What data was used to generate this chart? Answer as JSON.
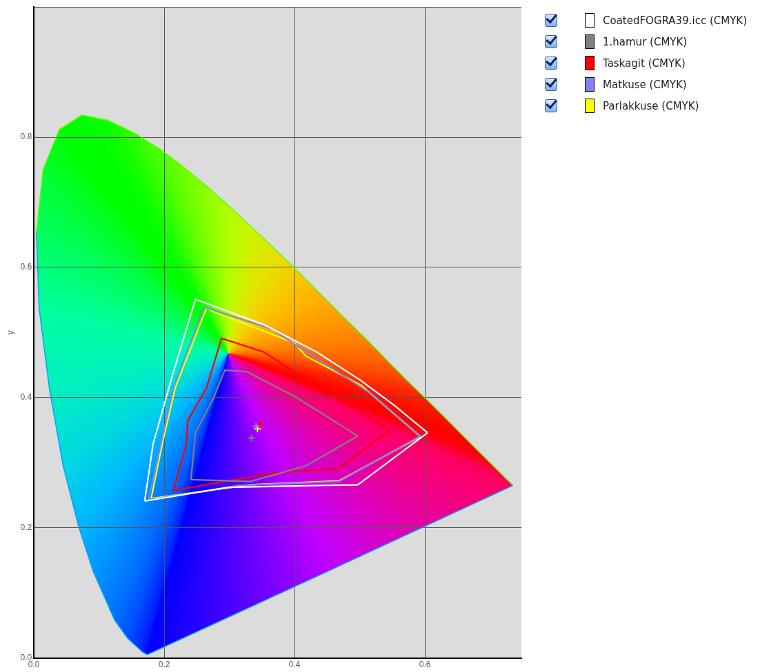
{
  "chart_data": {
    "type": "line",
    "ylabel": "y",
    "xlim": [
      0,
      0.748
    ],
    "xticks": [
      {
        "value": 0,
        "label": "0.0"
      },
      0.2,
      0.4,
      0.6
    ],
    "ylim": [
      0,
      1
    ],
    "yticks": [
      {
        "value": 0,
        "label": "0.0"
      },
      0.2,
      0.4,
      0.6,
      0.8,
      {
        "value": 1,
        "label": null
      }
    ],
    "grid": true,
    "legend": "top right",
    "marker": "none",
    "series": [
      {
        "color": "#00a0ff",
        "x": [
          0.004,
          0.008,
          0.024,
          0.045,
          0.069,
          0.091,
          0.124,
          0.144,
          0.167,
          0.174,
          0.455,
          0.735
        ],
        "values": [
          0.655,
          0.538,
          0.413,
          0.295,
          0.201,
          0.133,
          0.058,
          0.03,
          0.009,
          0.005,
          0.135,
          0.265
        ],
        "colors": [
          "#00ff60",
          "#00ffa0",
          "#00f0c0",
          "#00d8e0",
          "#00b8ff",
          "#0098ff",
          "#0070ff",
          "#0050ff",
          "#0020ff",
          "#0000ff",
          "#c000ff",
          "#ff0060"
        ]
      },
      {
        "color": "#60ff00",
        "x": [
          0.004,
          0.014,
          0.039,
          0.074,
          0.114,
          0.155,
          0.193,
          0.23,
          0.266,
          0.302,
          0.337,
          0.373,
          0.409,
          0.444,
          0.479,
          0.513,
          0.545,
          0.575,
          0.603,
          0.627,
          0.666,
          0.692,
          0.735
        ],
        "values": [
          0.655,
          0.75,
          0.812,
          0.834,
          0.826,
          0.806,
          0.782,
          0.754,
          0.724,
          0.692,
          0.659,
          0.625,
          0.59,
          0.555,
          0.52,
          0.487,
          0.454,
          0.424,
          0.397,
          0.373,
          0.334,
          0.308,
          0.265
        ],
        "colors": [
          "#00ff60",
          "#00ff30",
          "#00ff00",
          "#00ff00",
          "#10ff00",
          "#30ff00",
          "#50ff00",
          "#70ff00",
          "#90ff00",
          "#b0ff00",
          "#d0f000",
          "#e8e000",
          "#f8c800",
          "#ffb000",
          "#ff9800",
          "#ff8000",
          "#ff6000",
          "#ff4000",
          "#ff2000",
          "#ff1000",
          "#ff0000",
          "#ff0010",
          "#ff0060"
        ]
      },
      {
        "name": "CoatedFOGRA39.icc (CMYK)",
        "color": "#ffffff",
        "x": [
          0.17,
          0.183,
          0.214,
          0.248,
          0.353,
          0.434,
          0.502,
          0.553,
          0.604
        ],
        "values": [
          0.241,
          0.329,
          0.439,
          0.551,
          0.512,
          0.47,
          0.426,
          0.388,
          0.346
        ]
      },
      {
        "color": "#ffffff",
        "x": [
          0.17,
          0.298,
          0.434,
          0.497,
          0.604
        ],
        "values": [
          0.241,
          0.262,
          0.265,
          0.266,
          0.346
        ]
      },
      {
        "name": "1.hamur (CMYK)",
        "color": "#808080",
        "x": [
          0.241,
          0.248,
          0.275,
          0.293,
          0.326,
          0.4,
          0.497
        ],
        "values": [
          0.274,
          0.346,
          0.398,
          0.442,
          0.44,
          0.402,
          0.341
        ]
      },
      {
        "color": "#808080",
        "x": [
          0.241,
          0.332,
          0.417,
          0.497
        ],
        "values": [
          0.274,
          0.271,
          0.295,
          0.341
        ]
      },
      {
        "name": "Taskagit (CMYK)",
        "color": "#ff0000",
        "x": [
          0.214,
          0.234,
          0.236,
          0.265,
          0.288,
          0.353,
          0.4,
          0.468,
          0.546
        ],
        "values": [
          0.257,
          0.329,
          0.364,
          0.415,
          0.491,
          0.47,
          0.439,
          0.398,
          0.35
        ]
      },
      {
        "color": "#ff0000",
        "x": [
          0.214,
          0.366,
          0.468,
          0.546
        ],
        "values": [
          0.257,
          0.284,
          0.291,
          0.35
        ]
      },
      {
        "name": "Matkuse (CMYK)",
        "color": "#8080ff",
        "x": [
          0.176,
          0.195,
          0.214,
          0.261,
          0.366,
          0.4,
          0.519,
          0.593
        ],
        "values": [
          0.243,
          0.329,
          0.415,
          0.539,
          0.505,
          0.482,
          0.405,
          0.341
        ]
      },
      {
        "color": "#8080ff",
        "x": [
          0.176,
          0.315,
          0.468,
          0.593
        ],
        "values": [
          0.243,
          0.265,
          0.271,
          0.341
        ]
      },
      {
        "name": "Parlakkuse (CMYK)",
        "color": "#ffff00",
        "x": [
          0.18,
          0.197,
          0.217,
          0.265,
          0.275,
          0.4,
          0.417,
          0.502,
          0.593
        ],
        "values": [
          0.245,
          0.329,
          0.415,
          0.538,
          0.532,
          0.484,
          0.464,
          0.419,
          0.34
        ]
      },
      {
        "color": "#ffff00",
        "x": [
          0.18,
          0.332,
          0.468,
          0.593
        ],
        "values": [
          0.245,
          0.266,
          0.272,
          0.34
        ]
      },
      {
        "type": "scatter",
        "marker": "cross",
        "color": "#808080",
        "x": [
          0.334
        ],
        "values": [
          0.338
        ]
      },
      {
        "type": "scatter",
        "marker": "cross",
        "color": "#8080ff",
        "x": [
          0.341
        ],
        "values": [
          0.356
        ]
      },
      {
        "type": "scatter",
        "marker": "cross",
        "color": "#ffff00",
        "x": [
          0.343
        ],
        "values": [
          0.352
        ]
      },
      {
        "type": "scatter",
        "marker": "cross",
        "color": "#ff0000",
        "x": [
          0.348
        ],
        "values": [
          0.359
        ]
      }
    ]
  }
}
